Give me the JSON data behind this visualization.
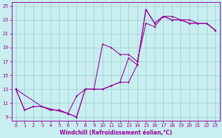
{
  "title": "",
  "xlabel": "Windchill (Refroidissement éolien,°C)",
  "bg_color": "#c8eef0",
  "line_color": "#990099",
  "grid_color": "#99cccc",
  "xlim": [
    -0.5,
    23.5
  ],
  "ylim": [
    8.5,
    25.5
  ],
  "xticks": [
    0,
    1,
    2,
    3,
    4,
    5,
    6,
    7,
    8,
    9,
    10,
    11,
    12,
    13,
    14,
    15,
    16,
    17,
    18,
    19,
    20,
    21,
    22,
    23
  ],
  "yticks": [
    9,
    11,
    13,
    15,
    17,
    19,
    21,
    23,
    25
  ],
  "line1_x": [
    0,
    1,
    2,
    3,
    4,
    5,
    6,
    7,
    8,
    9,
    10,
    11,
    12,
    13,
    14,
    15,
    16,
    17,
    18,
    19,
    20,
    21,
    22,
    23
  ],
  "line1_y": [
    13,
    10,
    10.5,
    10.5,
    10,
    10,
    9.5,
    9,
    13,
    13,
    13,
    13.5,
    14,
    17.5,
    16.5,
    24.5,
    22.5,
    23.5,
    23.5,
    23,
    22.5,
    22.5,
    22.5,
    21.5
  ],
  "line2_x": [
    0,
    1,
    2,
    3,
    4,
    5,
    6,
    7,
    8,
    9,
    10,
    11,
    12,
    13,
    14,
    15,
    16,
    17,
    18,
    19,
    20,
    21,
    22,
    23
  ],
  "line2_y": [
    13,
    10,
    10.5,
    10.5,
    10,
    10,
    9.5,
    12,
    13,
    13,
    19.5,
    19,
    18,
    18,
    17,
    22.5,
    22,
    23.5,
    23,
    23,
    22.5,
    22.5,
    22.5,
    21.5
  ],
  "line3_x": [
    0,
    3,
    6,
    7,
    8,
    9,
    10,
    11,
    12,
    13,
    14,
    15,
    16,
    17,
    18,
    19,
    20,
    21,
    22,
    23
  ],
  "line3_y": [
    13,
    10.5,
    9.5,
    9,
    13,
    13,
    13,
    13.5,
    14,
    14,
    16.5,
    24.5,
    22.5,
    23.5,
    23,
    23,
    23,
    22.5,
    22.5,
    21.5
  ],
  "xlabel_fontsize": 5.5,
  "tick_fontsize": 5.0,
  "linewidth": 0.8,
  "marker_size": 2.0
}
